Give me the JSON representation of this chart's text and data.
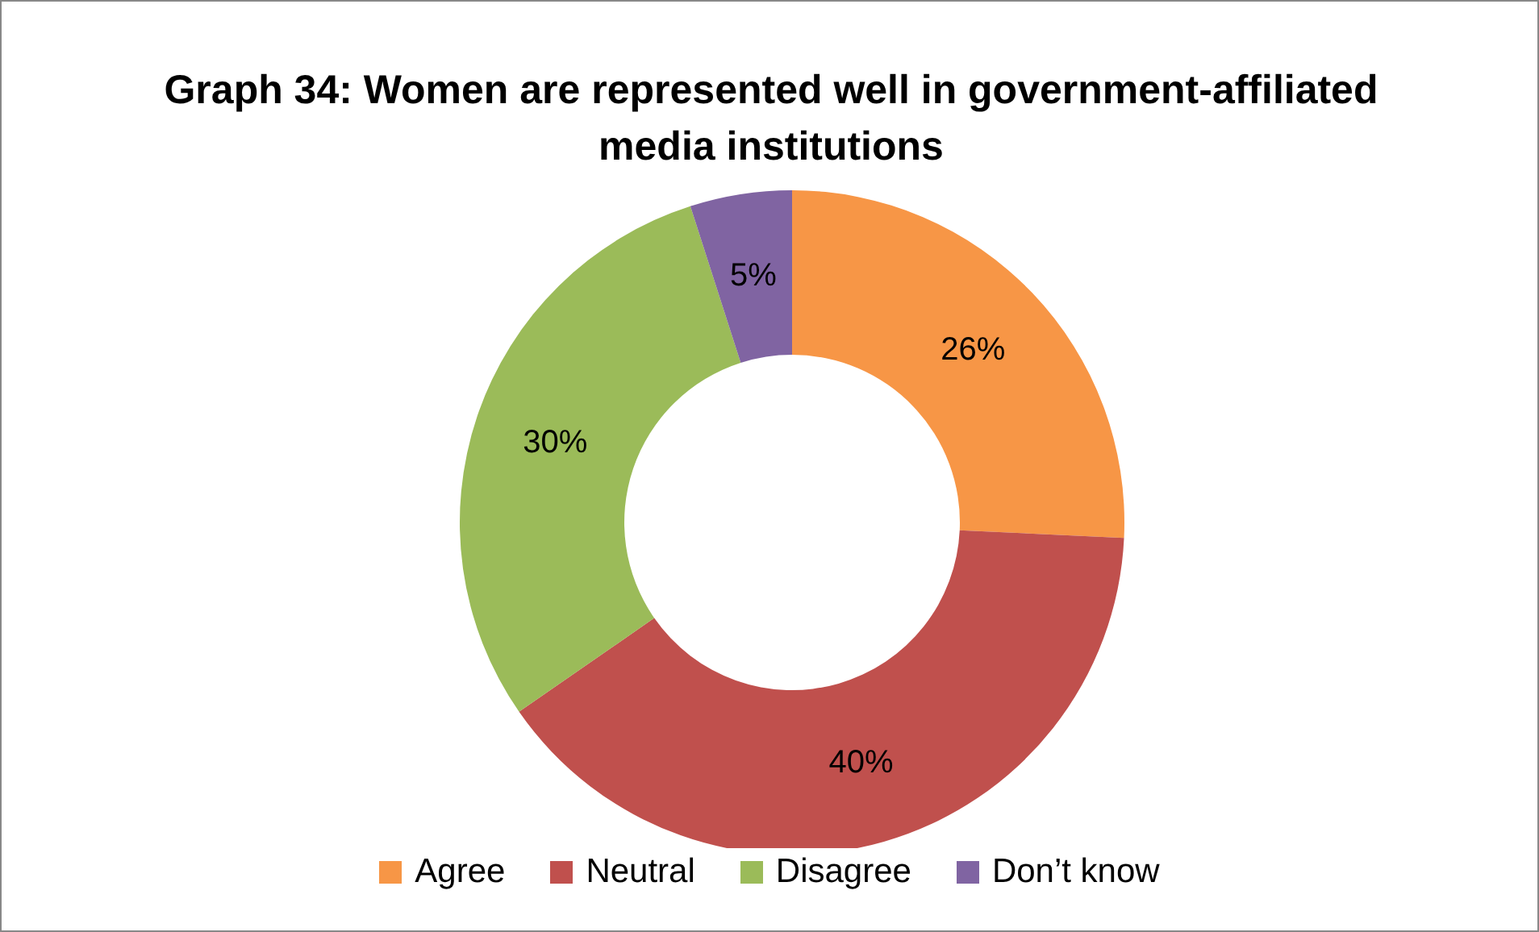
{
  "chart_data": {
    "type": "donut",
    "title": "Graph 34: Women are represented well in government-affiliated media institutions",
    "categories": [
      "Agree",
      "Neutral",
      "Disagree",
      "Don’t know"
    ],
    "values": [
      26,
      40,
      30,
      5
    ],
    "colors": [
      "#f79646",
      "#c0504d",
      "#9bbb59",
      "#8064a2"
    ],
    "value_labels": [
      "26%",
      "40%",
      "30%",
      "5%"
    ],
    "legend": "bottom"
  }
}
